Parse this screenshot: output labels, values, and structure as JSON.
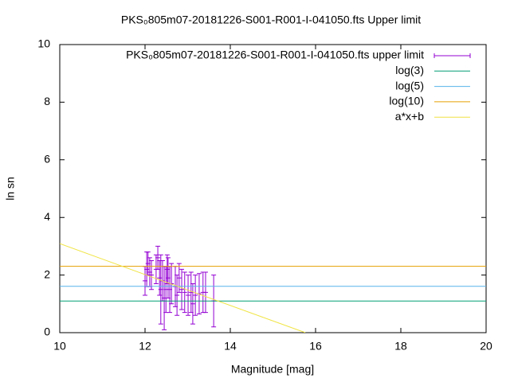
{
  "chart_data": {
    "type": "errorbar",
    "title": "PKS₀805m07-20181226-S001-R001-I-041050.fts Upper limit",
    "x_label": "Magnitude [mag]",
    "y_label": "ln sn",
    "xlim": [
      10,
      20
    ],
    "ylim": [
      0,
      10
    ],
    "xticks": [
      10,
      12,
      14,
      16,
      18,
      20
    ],
    "yticks": [
      0,
      2,
      4,
      6,
      8,
      10
    ],
    "grid": false,
    "legend": "top right",
    "series": [
      {
        "name": "PKS₀805m07-20181226-S001-R001-I-041050.fts upper limit",
        "type": "errorbar",
        "color": "#9400d3",
        "x": [
          12.0,
          12.04,
          12.07,
          12.11,
          12.15,
          12.26,
          12.3,
          12.34,
          12.37,
          12.41,
          12.45,
          12.49,
          12.52,
          12.54,
          12.58,
          12.62,
          12.71,
          12.75,
          12.8,
          12.86,
          12.93,
          13.01,
          13.08,
          13.12,
          13.18,
          13.27,
          13.36,
          13.42,
          13.61
        ],
        "values": [
          1.8,
          2.2,
          2.4,
          2.1,
          2.0,
          2.2,
          2.6,
          1.9,
          1.5,
          1.8,
          1.2,
          1.5,
          2.2,
          1.9,
          1.5,
          1.7,
          1.6,
          1.3,
          1.9,
          1.5,
          1.4,
          1.3,
          1.4,
          1.0,
          1.3,
          1.35,
          1.4,
          1.4,
          1.1
        ],
        "errors": [
          0.5,
          0.6,
          0.4,
          0.5,
          0.5,
          0.5,
          0.4,
          0.6,
          1.2,
          0.7,
          1.1,
          0.8,
          0.5,
          0.7,
          0.8,
          0.7,
          0.7,
          0.7,
          0.5,
          0.7,
          0.7,
          0.7,
          0.7,
          0.7,
          0.7,
          0.7,
          0.7,
          0.7,
          0.9
        ]
      },
      {
        "name": "log(3)",
        "type": "line",
        "color": "#009e73",
        "x": [
          10,
          20
        ],
        "values": [
          1.0986,
          1.0986
        ]
      },
      {
        "name": "log(5)",
        "type": "line",
        "color": "#56b4e9",
        "x": [
          10,
          20
        ],
        "values": [
          1.6094,
          1.6094
        ]
      },
      {
        "name": "log(10)",
        "type": "line",
        "color": "#e69f00",
        "x": [
          10,
          20
        ],
        "values": [
          2.3026,
          2.3026
        ]
      },
      {
        "name": "a*x+b",
        "type": "line",
        "color": "#f0e442",
        "x": [
          10,
          15.76
        ],
        "values": [
          3.09,
          0
        ]
      }
    ]
  }
}
